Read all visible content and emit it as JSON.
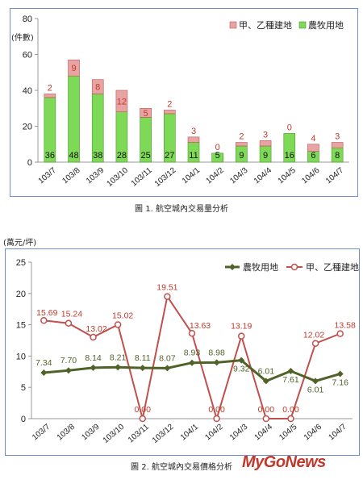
{
  "chart_data": [
    {
      "type": "bar",
      "stacked": true,
      "categories": [
        "103/7",
        "103/8",
        "103/9",
        "103/10",
        "103/11",
        "103/12",
        "104/1",
        "104/2",
        "104/3",
        "104/4",
        "104/5",
        "104/6",
        "104/7"
      ],
      "series": [
        {
          "name": "農牧用地",
          "color": "#7ed957",
          "values": [
            36,
            48,
            38,
            28,
            25,
            27,
            11,
            5,
            9,
            9,
            16,
            6,
            8
          ]
        },
        {
          "name": "甲、乙種建地",
          "color": "#e8a3a3",
          "values": [
            2,
            9,
            8,
            12,
            5,
            2,
            3,
            0,
            2,
            3,
            0,
            4,
            3
          ]
        }
      ],
      "ylabel": "(件數)",
      "ylim": [
        0,
        80
      ],
      "yticks": [
        0,
        20,
        40,
        60,
        80
      ],
      "legend": "top-right",
      "caption": "圖 1. 航空城內交易量分析"
    },
    {
      "type": "line",
      "categories": [
        "103/7",
        "103/8",
        "103/9",
        "103/10",
        "103/11",
        "103/12",
        "104/1",
        "104/2",
        "104/3",
        "104/4",
        "104/5",
        "104/6",
        "104/7"
      ],
      "series": [
        {
          "name": "農牧用地",
          "color": "#4f6228",
          "values": [
            7.34,
            7.7,
            8.14,
            8.21,
            8.11,
            8.07,
            8.93,
            8.98,
            9.32,
            6.01,
            7.61,
            6.01,
            7.16
          ],
          "labels": [
            "7.34",
            "7.70",
            "8.14",
            "8.21",
            "8.11",
            "8.07",
            "8.93",
            "8.98",
            "9.32",
            "6.01",
            "7.61",
            "6.01",
            "7.16"
          ]
        },
        {
          "name": "甲、乙種建地",
          "color": "#c0504d",
          "values": [
            15.69,
            15.24,
            13.02,
            15.02,
            0.0,
            19.51,
            13.63,
            0.0,
            13.19,
            0.0,
            0.0,
            12.02,
            13.58
          ],
          "labels": [
            "15.69",
            "15.24",
            "13.02",
            "15.02",
            "0.00",
            "19.51",
            "13.63",
            "0.00",
            "13.19",
            "0.00",
            "0.00",
            "12.02",
            "13.58"
          ]
        }
      ],
      "ylabel": "(萬元/坪)",
      "ylim": [
        0,
        25
      ],
      "yticks": [
        0,
        5,
        10,
        15,
        20,
        25
      ],
      "legend": "top-right",
      "caption": "圖 2. 航空城內交易價格分析"
    }
  ],
  "watermark": "MyGoNews"
}
